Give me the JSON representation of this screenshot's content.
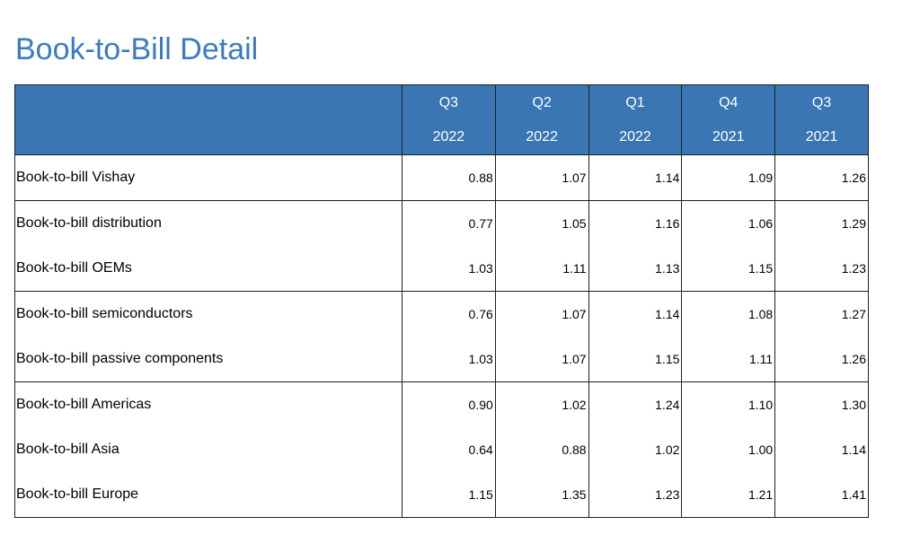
{
  "page": {
    "title": "Book-to-Bill Detail"
  },
  "table": {
    "columns": [
      {
        "quarter": "Q3",
        "year": "2022"
      },
      {
        "quarter": "Q2",
        "year": "2022"
      },
      {
        "quarter": "Q1",
        "year": "2022"
      },
      {
        "quarter": "Q4",
        "year": "2021"
      },
      {
        "quarter": "Q3",
        "year": "2021"
      }
    ],
    "rows": [
      {
        "label": "Book-to-bill Vishay",
        "values": [
          "0.88",
          "1.07",
          "1.14",
          "1.09",
          "1.26"
        ]
      },
      {
        "label": "Book-to-bill distribution",
        "values": [
          "0.77",
          "1.05",
          "1.16",
          "1.06",
          "1.29"
        ]
      },
      {
        "label": "Book-to-bill OEMs",
        "values": [
          "1.03",
          "1.11",
          "1.13",
          "1.15",
          "1.23"
        ]
      },
      {
        "label": "Book-to-bill semiconductors",
        "values": [
          "0.76",
          "1.07",
          "1.14",
          "1.08",
          "1.27"
        ]
      },
      {
        "label": "Book-to-bill passive components",
        "values": [
          "1.03",
          "1.07",
          "1.15",
          "1.11",
          "1.26"
        ]
      },
      {
        "label": "Book-to-bill Americas",
        "values": [
          "0.90",
          "1.02",
          "1.24",
          "1.10",
          "1.30"
        ]
      },
      {
        "label": "Book-to-bill Asia",
        "values": [
          "0.64",
          "0.88",
          "1.02",
          "1.00",
          "1.14"
        ]
      },
      {
        "label": "Book-to-bill Europe",
        "values": [
          "1.15",
          "1.35",
          "1.23",
          "1.21",
          "1.41"
        ]
      }
    ]
  },
  "colors": {
    "title": "#3a7cc2",
    "header_background": "#3a76b4",
    "header_text": "#ffffff",
    "rule": "#1f1f1f"
  }
}
